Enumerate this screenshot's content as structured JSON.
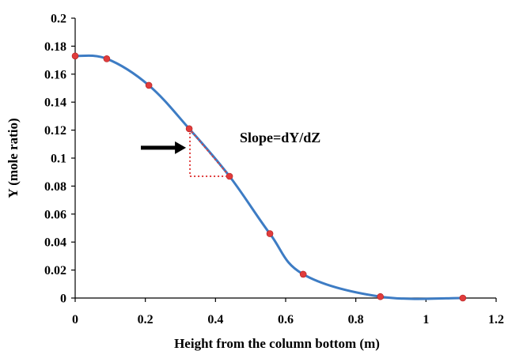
{
  "chart_data": {
    "type": "line",
    "title": "",
    "xlabel": "Height from the column bottom (m)",
    "ylabel": "Y (mole ratio)",
    "xlim": [
      0,
      1.2
    ],
    "ylim": [
      0,
      0.2
    ],
    "x_ticks": [
      "0",
      "0.2",
      "0.4",
      "0.6",
      "0.8",
      "1",
      "1.2"
    ],
    "y_ticks": [
      "0",
      "0.02",
      "0.04",
      "0.06",
      "0.08",
      "0.1",
      "0.12",
      "0.14",
      "0.16",
      "0.18",
      "0.2"
    ],
    "grid": false,
    "legend": "none",
    "series": [
      {
        "smooth": true,
        "line_color": "#3d7cc4",
        "marker_color": "#e03c3c",
        "x": [
          0,
          0.09,
          0.21,
          0.325,
          0.44,
          0.555,
          0.65,
          0.87,
          1.105
        ],
        "y": [
          0.173,
          0.171,
          0.152,
          0.121,
          0.087,
          0.046,
          0.017,
          0.001,
          0.0
        ]
      }
    ],
    "annotations": {
      "slope_text": "Slope=dY/dZ",
      "slope_triangle": {
        "x1": 0.325,
        "y1": 0.121,
        "x2": 0.44,
        "y2": 0.087,
        "color": "#e03c3c"
      },
      "arrow_color": "#000000"
    }
  }
}
